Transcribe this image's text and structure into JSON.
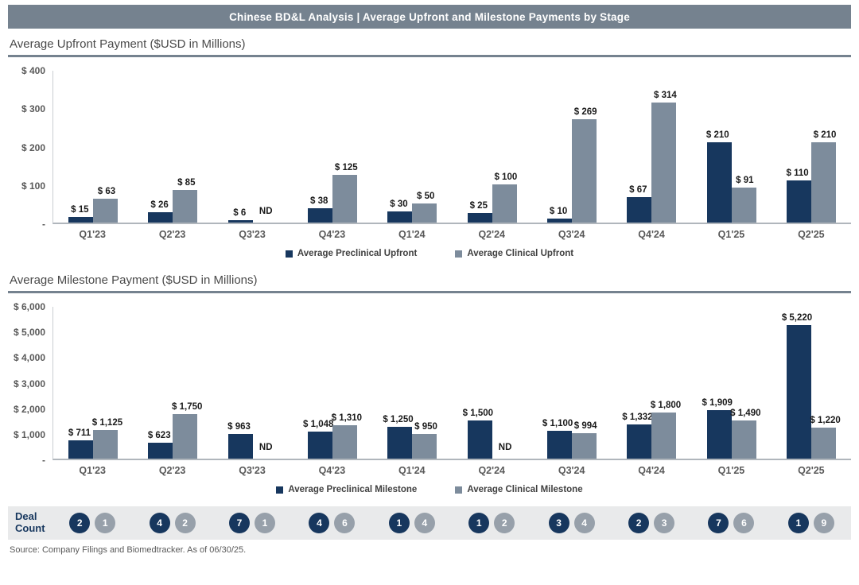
{
  "header": {
    "title": "Chinese BD&L Analysis | Average Upfront and Milestone Payments by Stage"
  },
  "colors": {
    "preclinical": "#17375E",
    "clinical": "#7D8C9C",
    "header_bg": "#75828F",
    "deal_band_bg": "#E9EAEB",
    "deal_circle_preclinical": "#17375E",
    "deal_circle_clinical": "#97A0AA"
  },
  "chart_data": [
    {
      "type": "bar",
      "title": "Average Upfront Payment ($USD in Millions)",
      "categories": [
        "Q1'23",
        "Q2'23",
        "Q3'23",
        "Q4'23",
        "Q1'24",
        "Q2'24",
        "Q3'24",
        "Q4'24",
        "Q1'25",
        "Q2'25"
      ],
      "series": [
        {
          "name": "Average Preclinical Upfront",
          "color": "#17375E",
          "values": [
            15,
            26,
            6,
            38,
            30,
            25,
            10,
            67,
            210,
            110
          ],
          "labels": [
            "$ 15",
            "$ 26",
            "$ 6",
            "$ 38",
            "$ 30",
            "$ 25",
            "$ 10",
            "$ 67",
            "$ 210",
            "$ 110"
          ]
        },
        {
          "name": "Average Clinical Upfront",
          "color": "#7D8C9C",
          "values": [
            63,
            85,
            null,
            125,
            50,
            100,
            269,
            314,
            91,
            210
          ],
          "labels": [
            "$ 63",
            "$ 85",
            "ND",
            "$ 125",
            "$ 50",
            "$ 100",
            "$ 269",
            "$ 314",
            "$ 91",
            "$ 210"
          ]
        }
      ],
      "yticks": [
        "$ 400",
        "$ 300",
        "$ 200",
        "$ 100",
        "-"
      ],
      "ylim": [
        0,
        400
      ],
      "grid": false,
      "legend_position": "bottom"
    },
    {
      "type": "bar",
      "title": "Average Milestone Payment ($USD in Millions)",
      "categories": [
        "Q1'23",
        "Q2'23",
        "Q3'23",
        "Q4'23",
        "Q1'24",
        "Q2'24",
        "Q3'24",
        "Q4'24",
        "Q1'25",
        "Q2'25"
      ],
      "series": [
        {
          "name": "Average Preclinical Milestone",
          "color": "#17375E",
          "values": [
            711,
            623,
            963,
            1048,
            1250,
            1500,
            1100,
            1332,
            1909,
            5220
          ],
          "labels": [
            "$ 711",
            "$ 623",
            "$ 963",
            "$ 1,048",
            "$ 1,250",
            "$ 1,500",
            "$ 1,100",
            "$ 1,332",
            "$ 1,909",
            "$ 5,220"
          ]
        },
        {
          "name": "Average Clinical Milestone",
          "color": "#7D8C9C",
          "values": [
            1125,
            1750,
            null,
            1310,
            950,
            null,
            994,
            1800,
            1490,
            1220
          ],
          "labels": [
            "$ 1,125",
            "$ 1,750",
            "ND",
            "$ 1,310",
            "$ 950",
            "ND",
            "$ 994",
            "$ 1,800",
            "$ 1,490",
            "$ 1,220"
          ]
        }
      ],
      "yticks": [
        "$ 6,000",
        "$ 5,000",
        "$ 4,000",
        "$ 3,000",
        "$ 2,000",
        "$ 1,000",
        "-"
      ],
      "ylim": [
        0,
        6000
      ],
      "grid": false,
      "legend_position": "bottom"
    }
  ],
  "deal_count": {
    "label": "Deal Count",
    "pairs": [
      [
        2,
        1
      ],
      [
        4,
        2
      ],
      [
        7,
        1
      ],
      [
        4,
        6
      ],
      [
        1,
        4
      ],
      [
        1,
        2
      ],
      [
        3,
        4
      ],
      [
        2,
        3
      ],
      [
        7,
        6
      ],
      [
        1,
        9
      ]
    ]
  },
  "source": "Source: Company Filings and Biomedtracker. As of 06/30/25."
}
